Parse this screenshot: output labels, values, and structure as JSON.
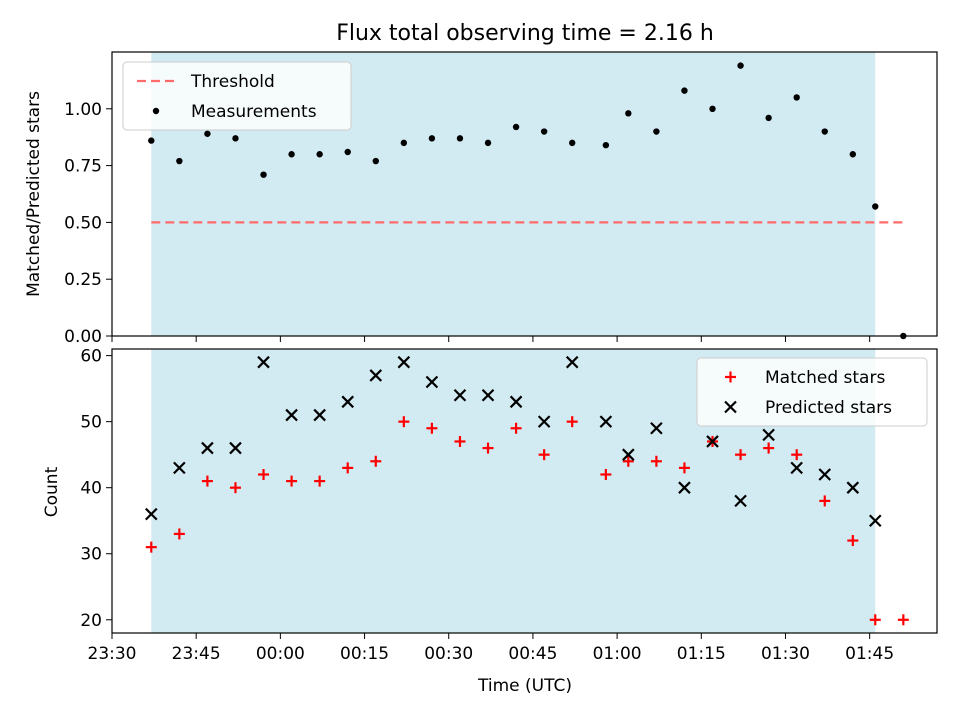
{
  "figure": {
    "title": "Flux total observing time = 2.16 h",
    "xlabel": "Time (UTC)"
  },
  "chart_data": [
    {
      "type": "scatter",
      "ylabel": "Matched/Predicted stars",
      "xlim": [
        "23:30",
        "01:57"
      ],
      "ylim": [
        0,
        1.25
      ],
      "yticks": [
        0,
        0.25,
        0.5,
        0.75,
        1.0
      ],
      "ytick_labels": [
        "0.00",
        "0.25",
        "0.50",
        "0.75",
        "1.00"
      ],
      "shaded_span": {
        "start": "23:37",
        "end": "01:46",
        "color": "#add8e6"
      },
      "legend_position": "upper left",
      "threshold": {
        "name": "Threshold",
        "value": 0.5,
        "x_start": "23:37",
        "x_end": "01:51",
        "color": "#ff6b6b",
        "style": "dashed"
      },
      "series": [
        {
          "name": "Measurements",
          "color": "#000000",
          "marker": "dot",
          "points": [
            [
              "23:37",
              0.86
            ],
            [
              "23:42",
              0.77
            ],
            [
              "23:47",
              0.89
            ],
            [
              "23:52",
              0.87
            ],
            [
              "23:57",
              0.71
            ],
            [
              "00:02",
              0.8
            ],
            [
              "00:07",
              0.8
            ],
            [
              "00:12",
              0.81
            ],
            [
              "00:17",
              0.77
            ],
            [
              "00:22",
              0.85
            ],
            [
              "00:27",
              0.87
            ],
            [
              "00:32",
              0.87
            ],
            [
              "00:37",
              0.85
            ],
            [
              "00:42",
              0.92
            ],
            [
              "00:47",
              0.9
            ],
            [
              "00:52",
              0.85
            ],
            [
              "00:58",
              0.84
            ],
            [
              "01:02",
              0.98
            ],
            [
              "01:07",
              0.9
            ],
            [
              "01:12",
              1.08
            ],
            [
              "01:17",
              1.0
            ],
            [
              "01:22",
              1.19
            ],
            [
              "01:27",
              0.96
            ],
            [
              "01:32",
              1.05
            ],
            [
              "01:37",
              0.9
            ],
            [
              "01:42",
              0.8
            ],
            [
              "01:46",
              0.57
            ],
            [
              "01:51",
              0.0
            ]
          ]
        }
      ]
    },
    {
      "type": "scatter",
      "ylabel": "Count",
      "xlabel": "Time (UTC)",
      "xlim": [
        "23:30",
        "01:57"
      ],
      "ylim": [
        18,
        61
      ],
      "yticks": [
        20,
        30,
        40,
        50,
        60
      ],
      "xticks": [
        "23:30",
        "23:45",
        "00:00",
        "00:15",
        "00:30",
        "00:45",
        "01:00",
        "01:15",
        "01:30",
        "01:45"
      ],
      "shaded_span": {
        "start": "23:37",
        "end": "01:46",
        "color": "#add8e6"
      },
      "legend_position": "upper right",
      "series": [
        {
          "name": "Matched stars",
          "color": "#ff0000",
          "marker": "plus",
          "points": [
            [
              "23:37",
              31
            ],
            [
              "23:42",
              33
            ],
            [
              "23:47",
              41
            ],
            [
              "23:52",
              40
            ],
            [
              "23:57",
              42
            ],
            [
              "00:02",
              41
            ],
            [
              "00:07",
              41
            ],
            [
              "00:12",
              43
            ],
            [
              "00:17",
              44
            ],
            [
              "00:22",
              50
            ],
            [
              "00:27",
              49
            ],
            [
              "00:32",
              47
            ],
            [
              "00:37",
              46
            ],
            [
              "00:42",
              49
            ],
            [
              "00:47",
              45
            ],
            [
              "00:52",
              50
            ],
            [
              "00:58",
              42
            ],
            [
              "01:02",
              44
            ],
            [
              "01:07",
              44
            ],
            [
              "01:12",
              43
            ],
            [
              "01:17",
              47
            ],
            [
              "01:22",
              45
            ],
            [
              "01:27",
              46
            ],
            [
              "01:32",
              45
            ],
            [
              "01:37",
              38
            ],
            [
              "01:42",
              32
            ],
            [
              "01:46",
              20
            ],
            [
              "01:51",
              20
            ]
          ]
        },
        {
          "name": "Predicted stars",
          "color": "#000000",
          "marker": "x",
          "points": [
            [
              "23:37",
              36
            ],
            [
              "23:42",
              43
            ],
            [
              "23:47",
              46
            ],
            [
              "23:52",
              46
            ],
            [
              "23:57",
              59
            ],
            [
              "00:02",
              51
            ],
            [
              "00:07",
              51
            ],
            [
              "00:12",
              53
            ],
            [
              "00:17",
              57
            ],
            [
              "00:22",
              59
            ],
            [
              "00:27",
              56
            ],
            [
              "00:32",
              54
            ],
            [
              "00:37",
              54
            ],
            [
              "00:42",
              53
            ],
            [
              "00:47",
              50
            ],
            [
              "00:52",
              59
            ],
            [
              "00:58",
              50
            ],
            [
              "01:02",
              45
            ],
            [
              "01:07",
              49
            ],
            [
              "01:12",
              40
            ],
            [
              "01:17",
              47
            ],
            [
              "01:22",
              38
            ],
            [
              "01:27",
              48
            ],
            [
              "01:32",
              43
            ],
            [
              "01:37",
              42
            ],
            [
              "01:42",
              40
            ],
            [
              "01:46",
              35
            ]
          ]
        }
      ]
    }
  ]
}
